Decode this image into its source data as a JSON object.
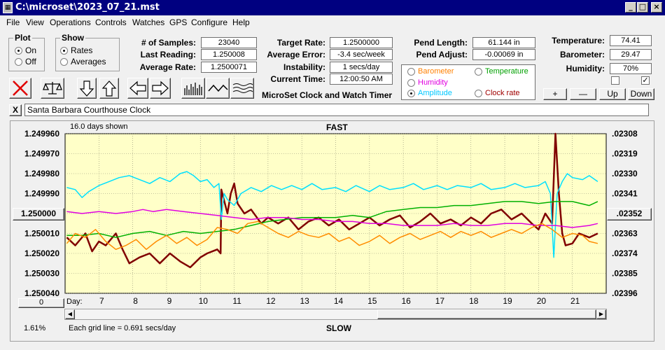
{
  "window": {
    "title": "C:\\microset\\2023_07_21.mst",
    "icon": "app-icon"
  },
  "menu": [
    "File",
    "View",
    "Operations",
    "Controls",
    "Watches",
    "GPS",
    "Configure",
    "Help"
  ],
  "plot_group": {
    "title": "Plot",
    "options": [
      "On",
      "Off"
    ],
    "selected": "On"
  },
  "show_group": {
    "title": "Show",
    "options": [
      "Rates",
      "Averages"
    ],
    "selected": "Rates"
  },
  "stats": {
    "samples_label": "# of Samples:",
    "samples": "23040",
    "last_label": "Last Reading:",
    "last": "1.250008",
    "avg_label": "Average Rate:",
    "avg": "1.2500071",
    "target_label": "Target Rate:",
    "target": "1.2500000",
    "avg_err_label": "Average Error:",
    "avg_err": "-3.4 sec/week",
    "instab_label": "Instability:",
    "instab": "1 secs/day",
    "time_label": "Current Time:",
    "time": "12:00:50 AM",
    "pend_len_label": "Pend Length:",
    "pend_len": "61.144 in",
    "pend_adj_label": "Pend Adjust:",
    "pend_adj": "-0.00069 in",
    "temp_label": "Temperature:",
    "temp": "74.41",
    "baro_label": "Barometer:",
    "baro": "29.47",
    "hum_label": "Humidity:",
    "hum": "70%"
  },
  "app_caption": "MicroSet Clock and Watch Timer",
  "legend": {
    "items": [
      {
        "label": "Barometer",
        "color": "#ff8000",
        "selected": false
      },
      {
        "label": "Temperature",
        "color": "#00a000",
        "selected": false
      },
      {
        "label": "Humidity",
        "color": "#e000e0",
        "selected": false
      },
      {
        "label": "Amplitude",
        "color": "#00c8ff",
        "selected": true
      },
      {
        "label": "Clock rate",
        "color": "#a00000",
        "selected": false
      }
    ]
  },
  "side_buttons": {
    "plus": "+",
    "minus": "—",
    "up": "Up",
    "down": "Down"
  },
  "clock_name": "Santa Barbara Courthouse Clock",
  "close_x": "X",
  "chart_header": {
    "days_shown": "16.0 days shown",
    "fast": "FAST",
    "slow": "SLOW",
    "grid_note": "Each grid line = 0.691 secs/day",
    "percent": "1.61%",
    "day_label": "Day:",
    "zero_button": "0",
    "mid_button_left": "1.250000",
    "mid_button_right": ".02352"
  },
  "chart_data": {
    "type": "line",
    "y_left_ticks": [
      "1.249960",
      "1.249970",
      "1.249980",
      "1.249990",
      "1.250000",
      "1.250010",
      "1.250020",
      "1.250030",
      "1.250040"
    ],
    "y_right_ticks": [
      ".02308",
      ".02319",
      ".02330",
      ".02341",
      ".02352",
      ".02363",
      ".02374",
      ".02385",
      ".02396"
    ],
    "x_ticks": [
      "7",
      "8",
      "9",
      "10",
      "11",
      "12",
      "13",
      "14",
      "15",
      "16",
      "17",
      "18",
      "19",
      "20",
      "21"
    ],
    "xlim": [
      6.0,
      22.0
    ],
    "ylim": [
      1.24996,
      1.25004
    ],
    "series": [
      {
        "name": "Clock rate",
        "color": "#800000",
        "width": 2.5,
        "points": [
          [
            6.05,
            1.250012
          ],
          [
            6.3,
            1.250016
          ],
          [
            6.6,
            1.25001
          ],
          [
            6.8,
            1.250019
          ],
          [
            7.0,
            1.250014
          ],
          [
            7.2,
            1.250016
          ],
          [
            7.5,
            1.25001
          ],
          [
            7.7,
            1.250018
          ],
          [
            7.9,
            1.250025
          ],
          [
            8.2,
            1.250022
          ],
          [
            8.5,
            1.25002
          ],
          [
            8.8,
            1.250025
          ],
          [
            9.1,
            1.25002
          ],
          [
            9.4,
            1.250024
          ],
          [
            9.7,
            1.250027
          ],
          [
            10.0,
            1.250022
          ],
          [
            10.2,
            1.25002
          ],
          [
            10.5,
            1.250018
          ],
          [
            10.6,
            1.25002
          ],
          [
            10.62,
            1.249988
          ],
          [
            10.8,
            1.25
          ],
          [
            10.9,
            1.24999
          ],
          [
            11.0,
            1.249985
          ],
          [
            11.1,
            1.249995
          ],
          [
            11.3,
            1.25
          ],
          [
            11.5,
            1.249998
          ],
          [
            11.8,
            1.250005
          ],
          [
            12.0,
            1.250002
          ],
          [
            12.3,
            1.250005
          ],
          [
            12.6,
            1.250002
          ],
          [
            12.9,
            1.250008
          ],
          [
            13.2,
            1.250004
          ],
          [
            13.5,
            1.250002
          ],
          [
            13.8,
            1.250006
          ],
          [
            14.1,
            1.250003
          ],
          [
            14.4,
            1.250008
          ],
          [
            14.7,
            1.250005
          ],
          [
            15.0,
            1.250002
          ],
          [
            15.3,
            1.250006
          ],
          [
            15.6,
            1.250003
          ],
          [
            15.9,
            1.250001
          ],
          [
            16.2,
            1.250007
          ],
          [
            16.5,
            1.250004
          ],
          [
            16.8,
            1.25
          ],
          [
            17.1,
            1.250005
          ],
          [
            17.4,
            1.250003
          ],
          [
            17.7,
            1.250006
          ],
          [
            18.0,
            1.250002
          ],
          [
            18.3,
            1.250005
          ],
          [
            18.6,
            1.25
          ],
          [
            18.9,
            1.249998
          ],
          [
            19.2,
            1.250003
          ],
          [
            19.5,
            1.25
          ],
          [
            19.8,
            1.250005
          ],
          [
            20.0,
            1.250008
          ],
          [
            20.2,
            1.25
          ],
          [
            20.4,
            1.250005
          ],
          [
            20.5,
            1.24996
          ],
          [
            20.6,
            1.24999
          ],
          [
            20.7,
            1.25001
          ],
          [
            20.8,
            1.250016
          ],
          [
            21.0,
            1.250015
          ],
          [
            21.2,
            1.25001
          ],
          [
            21.5,
            1.250012
          ],
          [
            21.75,
            1.25001
          ]
        ]
      },
      {
        "name": "Amplitude",
        "color": "#00e0ff",
        "width": 1.5,
        "points": [
          [
            6.05,
            1.249987
          ],
          [
            6.3,
            1.249988
          ],
          [
            6.5,
            1.249992
          ],
          [
            6.7,
            1.249989
          ],
          [
            7.0,
            1.249986
          ],
          [
            7.3,
            1.249984
          ],
          [
            7.6,
            1.249982
          ],
          [
            7.9,
            1.249981
          ],
          [
            8.2,
            1.249983
          ],
          [
            8.5,
            1.249985
          ],
          [
            8.8,
            1.249982
          ],
          [
            9.1,
            1.249984
          ],
          [
            9.4,
            1.24998
          ],
          [
            9.6,
            1.249979
          ],
          [
            9.8,
            1.249981
          ],
          [
            10.0,
            1.249984
          ],
          [
            10.2,
            1.249983
          ],
          [
            10.4,
            1.249987
          ],
          [
            10.55,
            1.249985
          ],
          [
            10.62,
            1.250003
          ],
          [
            10.7,
            1.24999
          ],
          [
            10.8,
            1.249993
          ],
          [
            11.0,
            1.249996
          ],
          [
            11.2,
            1.24999
          ],
          [
            11.5,
            1.249987
          ],
          [
            11.8,
            1.249989
          ],
          [
            12.1,
            1.249986
          ],
          [
            12.4,
            1.249988
          ],
          [
            12.7,
            1.249986
          ],
          [
            13.0,
            1.249988
          ],
          [
            13.3,
            1.249985
          ],
          [
            13.6,
            1.249988
          ],
          [
            14.0,
            1.249987
          ],
          [
            14.3,
            1.249989
          ],
          [
            14.6,
            1.249986
          ],
          [
            15.0,
            1.249989
          ],
          [
            15.3,
            1.249986
          ],
          [
            15.6,
            1.249988
          ],
          [
            16.0,
            1.249987
          ],
          [
            16.3,
            1.249985
          ],
          [
            16.6,
            1.249988
          ],
          [
            17.0,
            1.249986
          ],
          [
            17.3,
            1.249988
          ],
          [
            17.6,
            1.249986
          ],
          [
            18.0,
            1.249987
          ],
          [
            18.3,
            1.249985
          ],
          [
            18.6,
            1.249988
          ],
          [
            19.0,
            1.249987
          ],
          [
            19.3,
            1.249985
          ],
          [
            19.6,
            1.249987
          ],
          [
            20.0,
            1.249986
          ],
          [
            20.2,
            1.249984
          ],
          [
            20.35,
            1.24999
          ],
          [
            20.45,
            1.250022
          ],
          [
            20.55,
            1.24999
          ],
          [
            20.7,
            1.249984
          ],
          [
            20.85,
            1.24998
          ],
          [
            21.0,
            1.249982
          ],
          [
            21.3,
            1.249983
          ],
          [
            21.5,
            1.249981
          ],
          [
            21.75,
            1.249984
          ]
        ]
      },
      {
        "name": "Temperature",
        "color": "#00b000",
        "width": 1.5,
        "points": [
          [
            6.05,
            1.250011
          ],
          [
            6.5,
            1.250011
          ],
          [
            7.0,
            1.25001
          ],
          [
            7.5,
            1.250012
          ],
          [
            8.0,
            1.25001
          ],
          [
            8.5,
            1.250009
          ],
          [
            9.0,
            1.250011
          ],
          [
            9.5,
            1.250009
          ],
          [
            10.0,
            1.25001
          ],
          [
            10.5,
            1.250009
          ],
          [
            11.0,
            1.250008
          ],
          [
            11.5,
            1.250006
          ],
          [
            12.0,
            1.250004
          ],
          [
            12.5,
            1.250003
          ],
          [
            13.0,
            1.250002
          ],
          [
            13.5,
            1.250002
          ],
          [
            14.0,
            1.250002
          ],
          [
            14.5,
            1.250001
          ],
          [
            15.0,
            1.250002
          ],
          [
            15.5,
            1.249999
          ],
          [
            16.0,
            1.249998
          ],
          [
            16.5,
            1.249997
          ],
          [
            17.0,
            1.249997
          ],
          [
            17.5,
            1.249996
          ],
          [
            18.0,
            1.249996
          ],
          [
            18.5,
            1.249995
          ],
          [
            19.0,
            1.249994
          ],
          [
            19.5,
            1.249994
          ],
          [
            20.0,
            1.249995
          ],
          [
            20.5,
            1.249994
          ],
          [
            21.0,
            1.249994
          ],
          [
            21.5,
            1.249996
          ],
          [
            21.75,
            1.249994
          ]
        ]
      },
      {
        "name": "Humidity",
        "color": "#e000e0",
        "width": 1.5,
        "points": [
          [
            6.05,
            1.249999
          ],
          [
            6.5,
            1.25
          ],
          [
            7.0,
            1.249999
          ],
          [
            7.5,
            1.25
          ],
          [
            8.0,
            1.249999
          ],
          [
            8.3,
            1.249998
          ],
          [
            8.6,
            1.249999
          ],
          [
            9.0,
            1.249998
          ],
          [
            9.5,
            1.249999
          ],
          [
            10.0,
            1.25
          ],
          [
            10.5,
            1.250001
          ],
          [
            11.0,
            1.250002
          ],
          [
            11.5,
            1.250003
          ],
          [
            12.0,
            1.250002
          ],
          [
            12.5,
            1.250002
          ],
          [
            13.0,
            1.250003
          ],
          [
            13.5,
            1.250003
          ],
          [
            14.0,
            1.250004
          ],
          [
            14.5,
            1.250004
          ],
          [
            15.0,
            1.250005
          ],
          [
            15.5,
            1.250005
          ],
          [
            16.0,
            1.250006
          ],
          [
            16.5,
            1.250006
          ],
          [
            17.0,
            1.250006
          ],
          [
            17.5,
            1.250005
          ],
          [
            18.0,
            1.250006
          ],
          [
            18.5,
            1.250006
          ],
          [
            19.0,
            1.250005
          ],
          [
            19.5,
            1.250005
          ],
          [
            20.0,
            1.250006
          ],
          [
            20.5,
            1.250006
          ],
          [
            21.0,
            1.250007
          ],
          [
            21.5,
            1.250006
          ],
          [
            21.75,
            1.250005
          ]
        ]
      },
      {
        "name": "Barometer",
        "color": "#ff8c00",
        "width": 1.5,
        "points": [
          [
            6.05,
            1.250015
          ],
          [
            6.3,
            1.25001
          ],
          [
            6.6,
            1.250012
          ],
          [
            6.9,
            1.250008
          ],
          [
            7.2,
            1.250014
          ],
          [
            7.5,
            1.250018
          ],
          [
            7.8,
            1.250016
          ],
          [
            8.1,
            1.250013
          ],
          [
            8.4,
            1.250018
          ],
          [
            8.7,
            1.250014
          ],
          [
            9.0,
            1.250011
          ],
          [
            9.3,
            1.250015
          ],
          [
            9.6,
            1.250012
          ],
          [
            9.9,
            1.250016
          ],
          [
            10.2,
            1.250013
          ],
          [
            10.5,
            1.250007
          ],
          [
            10.8,
            1.250008
          ],
          [
            11.1,
            1.25001
          ],
          [
            11.4,
            1.250005
          ],
          [
            11.7,
            1.250004
          ],
          [
            12.0,
            1.250007
          ],
          [
            12.3,
            1.25001
          ],
          [
            12.6,
            1.250012
          ],
          [
            12.9,
            1.250009
          ],
          [
            13.2,
            1.250011
          ],
          [
            13.5,
            1.250012
          ],
          [
            13.8,
            1.25001
          ],
          [
            14.1,
            1.250014
          ],
          [
            14.4,
            1.250012
          ],
          [
            14.7,
            1.250016
          ],
          [
            15.0,
            1.250014
          ],
          [
            15.3,
            1.250011
          ],
          [
            15.6,
            1.250015
          ],
          [
            15.9,
            1.250012
          ],
          [
            16.2,
            1.25001
          ],
          [
            16.5,
            1.250013
          ],
          [
            16.8,
            1.250011
          ],
          [
            17.1,
            1.250009
          ],
          [
            17.4,
            1.250012
          ],
          [
            17.7,
            1.250009
          ],
          [
            18.0,
            1.250011
          ],
          [
            18.3,
            1.250009
          ],
          [
            18.6,
            1.250012
          ],
          [
            18.9,
            1.25001
          ],
          [
            19.2,
            1.250008
          ],
          [
            19.5,
            1.25001
          ],
          [
            19.8,
            1.250007
          ],
          [
            20.1,
            1.250005
          ],
          [
            20.4,
            1.250008
          ],
          [
            20.7,
            1.250012
          ],
          [
            21.0,
            1.25001
          ],
          [
            21.3,
            1.250011
          ],
          [
            21.5,
            1.250014
          ],
          [
            21.75,
            1.250015
          ]
        ]
      }
    ]
  }
}
